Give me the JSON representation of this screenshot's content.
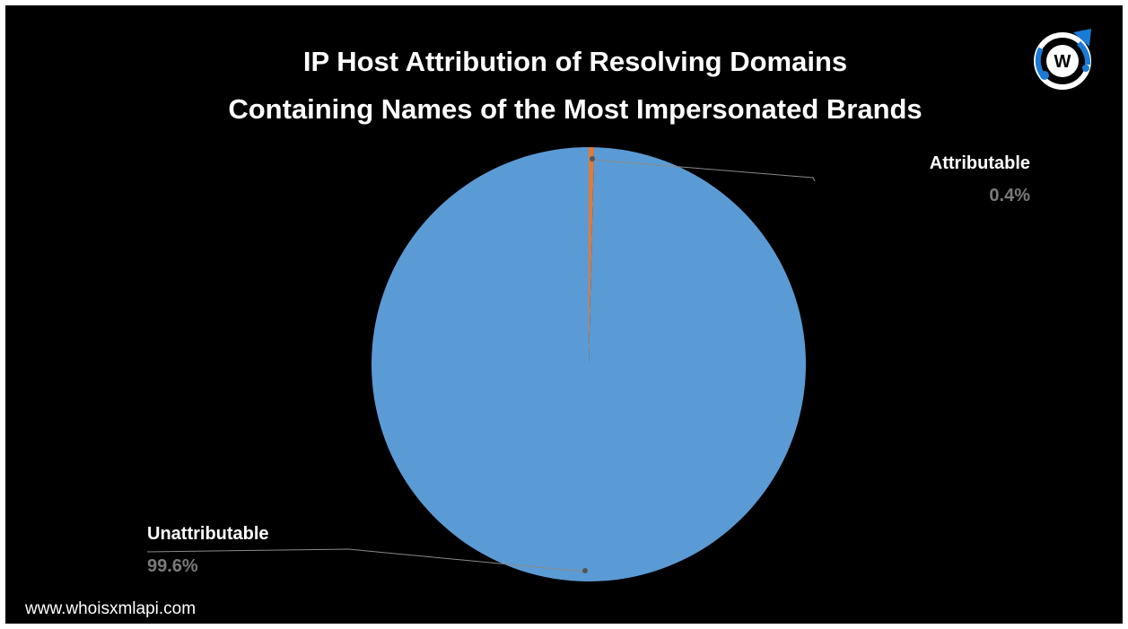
{
  "chart_data": {
    "type": "pie",
    "title_lines": [
      "IP Host Attribution of Resolving Domains",
      "Containing Names of the Most Impersonated Brands"
    ],
    "slices": [
      {
        "label": "Attributable",
        "value": 0.4,
        "display": "0.4%",
        "color": "#e07b39"
      },
      {
        "label": "Unattributable",
        "value": 99.6,
        "display": "99.6%",
        "color": "#5b9bd5"
      }
    ]
  },
  "source": "www.whoisxmlapi.com",
  "logo": {
    "letter": "W",
    "icon": "whoisxmlapi-logo-icon",
    "color": "#1a7bd6"
  }
}
